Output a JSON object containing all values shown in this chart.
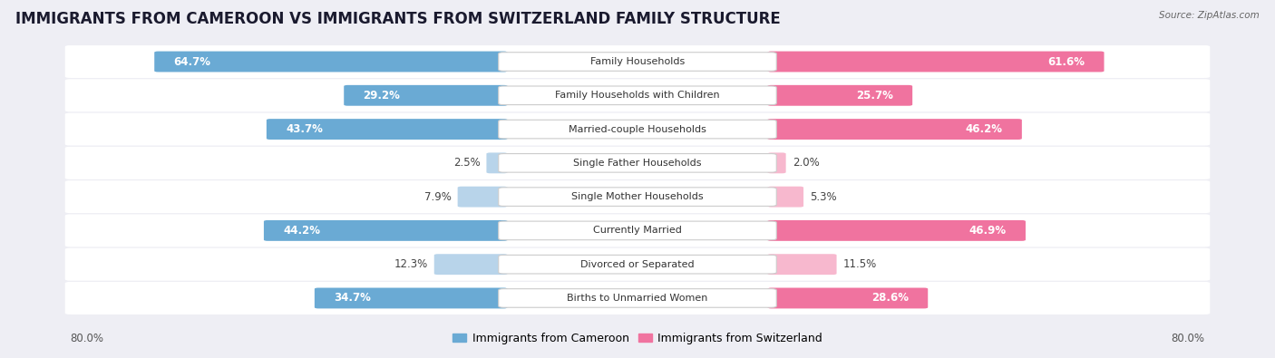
{
  "title": "IMMIGRANTS FROM CAMEROON VS IMMIGRANTS FROM SWITZERLAND FAMILY STRUCTURE",
  "source": "Source: ZipAtlas.com",
  "categories": [
    "Family Households",
    "Family Households with Children",
    "Married-couple Households",
    "Single Father Households",
    "Single Mother Households",
    "Currently Married",
    "Divorced or Separated",
    "Births to Unmarried Women"
  ],
  "cameroon_values": [
    64.7,
    29.2,
    43.7,
    2.5,
    7.9,
    44.2,
    12.3,
    34.7
  ],
  "switzerland_values": [
    61.6,
    25.7,
    46.2,
    2.0,
    5.3,
    46.9,
    11.5,
    28.6
  ],
  "cameroon_color_strong": "#6aaad4",
  "switzerland_color_strong": "#f0739f",
  "cameroon_color_light": "#b8d4ea",
  "switzerland_color_light": "#f7b8ce",
  "axis_limit": 80.0,
  "x_tick_label_left": "80.0%",
  "x_tick_label_right": "80.0%",
  "legend_cameroon": "Immigrants from Cameroon",
  "legend_switzerland": "Immigrants from Switzerland",
  "background_color": "#eeeef4",
  "row_bg_color": "#ffffff",
  "title_fontsize": 12,
  "value_fontsize": 8.5,
  "label_fontsize": 8,
  "strong_threshold": 15
}
